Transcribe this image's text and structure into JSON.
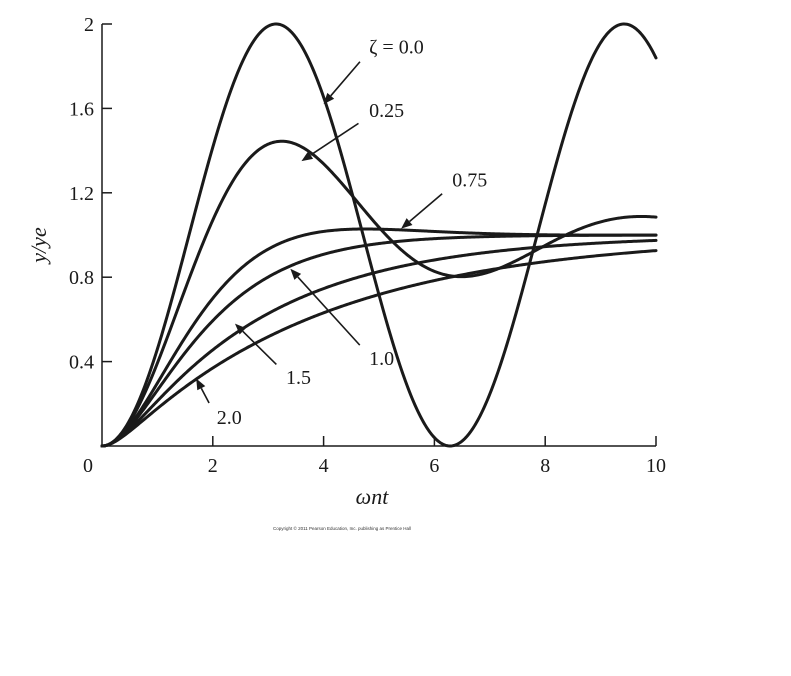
{
  "chart_data": {
    "type": "line",
    "title": "",
    "xlabel": "ωnt",
    "ylabel": "y/ye",
    "xlim": [
      0,
      10
    ],
    "ylim": [
      0,
      2
    ],
    "x_ticks": [
      0,
      2,
      4,
      6,
      8,
      10
    ],
    "y_ticks": [
      0.4,
      0.8,
      1.2,
      1.6,
      2
    ],
    "x_tick_labels": [
      "0",
      "2",
      "4",
      "6",
      "8",
      "10"
    ],
    "y_tick_labels": [
      "0.4",
      "0.8",
      "1.2",
      "1.6",
      "2"
    ],
    "grid": false,
    "legend": "none",
    "series": [
      {
        "label": "ζ = 0.0",
        "zeta": 0.0
      },
      {
        "label": "0.25",
        "zeta": 0.25
      },
      {
        "label": "0.75",
        "zeta": 0.75
      },
      {
        "label": "1.0",
        "zeta": 1.0
      },
      {
        "label": "1.5",
        "zeta": 1.5
      },
      {
        "label": "2.0",
        "zeta": 2.0
      }
    ],
    "annotations": [
      {
        "text": "ζ = 0.0",
        "series": 0,
        "point": [
          4.0,
          1.62
        ],
        "text_pos": [
          4.75,
          1.85
        ]
      },
      {
        "text": "0.25",
        "series": 1,
        "point": [
          3.6,
          1.35
        ],
        "text_pos": [
          4.75,
          1.55
        ]
      },
      {
        "text": "0.75",
        "series": 2,
        "point": [
          5.4,
          1.03
        ],
        "text_pos": [
          6.25,
          1.22
        ]
      },
      {
        "text": "1.0",
        "series": 3,
        "point": [
          3.4,
          0.84
        ],
        "text_pos": [
          4.75,
          0.45
        ]
      },
      {
        "text": "1.5",
        "series": 4,
        "point": [
          2.4,
          0.58
        ],
        "text_pos": [
          3.25,
          0.36
        ]
      },
      {
        "text": "2.0",
        "series": 5,
        "point": [
          1.7,
          0.32
        ],
        "text_pos": [
          2.0,
          0.17
        ]
      }
    ]
  },
  "copyright": "Copyright © 2011 Pearson Education, Inc. publishing as Prentice Hall"
}
